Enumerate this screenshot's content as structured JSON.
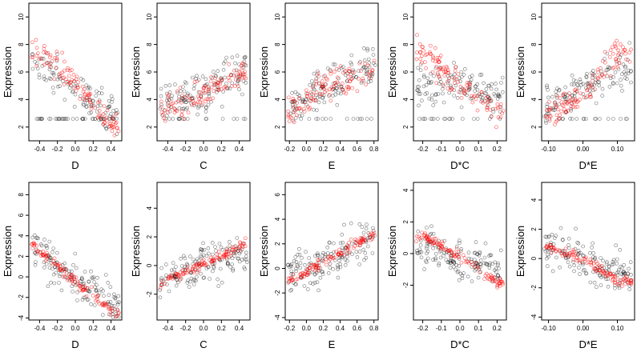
{
  "chart_data": [
    {
      "type": "scatter",
      "xlabel": "D",
      "ylabel": "Expression",
      "xlim": [
        -0.52,
        0.52
      ],
      "ylim": [
        1.0,
        11.0
      ],
      "xticks": [
        -0.4,
        -0.2,
        0.0,
        0.2,
        0.4
      ],
      "xtick_labels": [
        "-0.4",
        "-0.2",
        "0.0",
        "0.2",
        "0.4"
      ],
      "yticks": [
        2,
        4,
        6,
        8,
        10
      ],
      "ytick_labels": [
        "2",
        "4",
        "6",
        "8",
        "10"
      ],
      "trend": {
        "observed": [
          [
            -0.5,
            6.5
          ],
          [
            0.0,
            4.8
          ],
          [
            0.5,
            2.6
          ]
        ],
        "fitted": [
          [
            -0.5,
            8.0
          ],
          [
            0.0,
            5.2
          ],
          [
            0.5,
            1.6
          ]
        ]
      }
    },
    {
      "type": "scatter",
      "xlabel": "C",
      "ylabel": "Expression",
      "xlim": [
        -0.52,
        0.52
      ],
      "ylim": [
        1.0,
        11.0
      ],
      "xticks": [
        -0.4,
        -0.2,
        0.0,
        0.2,
        0.4
      ],
      "xtick_labels": [
        "-0.4",
        "-0.2",
        "0.0",
        "0.2",
        "0.4"
      ],
      "yticks": [
        2,
        4,
        6,
        8,
        10
      ],
      "ytick_labels": [
        "2",
        "4",
        "6",
        "8",
        "10"
      ],
      "trend": {
        "observed": [
          [
            -0.5,
            3.5
          ],
          [
            0.0,
            4.5
          ],
          [
            0.5,
            6.5
          ]
        ],
        "fitted": [
          [
            -0.5,
            3.0
          ],
          [
            0.0,
            4.2
          ],
          [
            0.5,
            6.2
          ]
        ]
      }
    },
    {
      "type": "scatter",
      "xlabel": "E",
      "ylabel": "Expression",
      "xlim": [
        -0.25,
        0.85
      ],
      "ylim": [
        1.0,
        11.0
      ],
      "xticks": [
        -0.2,
        0.0,
        0.2,
        0.4,
        0.6,
        0.8
      ],
      "xtick_labels": [
        "-0.2",
        "0.0",
        "0.2",
        "0.4",
        "0.6",
        "0.8"
      ],
      "yticks": [
        2,
        4,
        6,
        8,
        10
      ],
      "ytick_labels": [
        "2",
        "4",
        "6",
        "8",
        "10"
      ],
      "trend": {
        "observed": [
          [
            -0.2,
            3.5
          ],
          [
            0.2,
            4.8
          ],
          [
            0.8,
            6.5
          ]
        ],
        "fitted": [
          [
            -0.2,
            3.2
          ],
          [
            0.2,
            5.0
          ],
          [
            0.8,
            6.0
          ]
        ]
      }
    },
    {
      "type": "scatter",
      "xlabel": "D*C",
      "ylabel": "Expression",
      "xlim": [
        -0.25,
        0.25
      ],
      "ylim": [
        1.0,
        11.0
      ],
      "xticks": [
        -0.2,
        -0.1,
        0.0,
        0.1,
        0.2
      ],
      "xtick_labels": [
        "-0.2",
        "-0.1",
        "0.0",
        "0.1",
        "0.2"
      ],
      "yticks": [
        2,
        4,
        6,
        8,
        10
      ],
      "ytick_labels": [
        "2",
        "4",
        "6",
        "8",
        "10"
      ],
      "trend": {
        "observed": [
          [
            -0.2,
            5.0
          ],
          [
            0.0,
            5.0
          ],
          [
            0.2,
            4.5
          ]
        ],
        "fitted": [
          [
            -0.2,
            7.5
          ],
          [
            0.0,
            5.0
          ],
          [
            0.2,
            3.0
          ]
        ]
      }
    },
    {
      "type": "scatter",
      "xlabel": "D*E",
      "ylabel": "Expression",
      "xlim": [
        -0.12,
        0.15
      ],
      "ylim": [
        1.0,
        11.0
      ],
      "xticks": [
        -0.1,
        0.0,
        0.1
      ],
      "xtick_labels": [
        "-0.10",
        "0.00",
        "0.10"
      ],
      "yticks": [
        2,
        4,
        6,
        8,
        10
      ],
      "ytick_labels": [
        "2",
        "4",
        "6",
        "8",
        "10"
      ],
      "trend": {
        "observed": [
          [
            -0.1,
            3.5
          ],
          [
            0.0,
            5.0
          ],
          [
            0.1,
            6.0
          ]
        ],
        "fitted": [
          [
            -0.1,
            2.8
          ],
          [
            0.0,
            4.5
          ],
          [
            0.1,
            7.5
          ]
        ]
      }
    },
    {
      "type": "scatter",
      "xlabel": "D",
      "ylabel": "Expression",
      "xlim": [
        -0.52,
        0.52
      ],
      "ylim": [
        -4.2,
        9.2
      ],
      "xticks": [
        -0.4,
        -0.2,
        0.0,
        0.2,
        0.4
      ],
      "xtick_labels": [
        "-0.4",
        "-0.2",
        "0.0",
        "0.2",
        "0.4"
      ],
      "yticks": [
        -4,
        -2,
        0,
        2,
        4,
        6,
        8
      ],
      "ytick_labels": [
        "-4",
        "-2",
        "0",
        "2",
        "4",
        "6",
        "8"
      ],
      "trend": {
        "observed": [
          [
            -0.5,
            3.0
          ],
          [
            0.0,
            -0.5
          ],
          [
            0.5,
            -3.0
          ]
        ],
        "fitted": [
          [
            -0.5,
            3.3
          ],
          [
            0.0,
            -0.5
          ],
          [
            0.5,
            -3.8
          ]
        ]
      }
    },
    {
      "type": "scatter",
      "xlabel": "C",
      "ylabel": "Expression",
      "xlim": [
        -0.52,
        0.52
      ],
      "ylim": [
        -3.8,
        5.8
      ],
      "xticks": [
        -0.4,
        -0.2,
        0.0,
        0.2,
        0.4
      ],
      "xtick_labels": [
        "-0.4",
        "-0.2",
        "0.0",
        "0.2",
        "0.4"
      ],
      "yticks": [
        -2,
        0,
        2,
        4
      ],
      "ytick_labels": [
        "-2",
        "0",
        "2",
        "4"
      ],
      "trend": {
        "observed": [
          [
            -0.5,
            -1.0
          ],
          [
            0.0,
            0.0
          ],
          [
            0.5,
            1.0
          ]
        ],
        "fitted": [
          [
            -0.5,
            -1.3
          ],
          [
            0.0,
            0.1
          ],
          [
            0.5,
            1.6
          ]
        ]
      }
    },
    {
      "type": "scatter",
      "xlabel": "E",
      "ylabel": "Expression",
      "xlim": [
        -0.25,
        0.85
      ],
      "ylim": [
        -4.2,
        7.0
      ],
      "xticks": [
        -0.2,
        0.0,
        0.2,
        0.4,
        0.6,
        0.8
      ],
      "xtick_labels": [
        "-0.2",
        "0.0",
        "0.2",
        "0.4",
        "0.6",
        "0.8"
      ],
      "yticks": [
        -4,
        -2,
        0,
        2,
        4,
        6
      ],
      "ytick_labels": [
        "-4",
        "-2",
        "0",
        "2",
        "4",
        "6"
      ],
      "trend": {
        "observed": [
          [
            -0.2,
            -0.5
          ],
          [
            0.2,
            0.5
          ],
          [
            0.8,
            2.5
          ]
        ],
        "fitted": [
          [
            -0.2,
            -1.0
          ],
          [
            0.2,
            0.5
          ],
          [
            0.8,
            2.8
          ]
        ]
      }
    },
    {
      "type": "scatter",
      "xlabel": "D*C",
      "ylabel": "Expression",
      "xlim": [
        -0.25,
        0.25
      ],
      "ylim": [
        -4.2,
        4.5
      ],
      "xticks": [
        -0.2,
        -0.1,
        0.0,
        0.1,
        0.2
      ],
      "xtick_labels": [
        "-0.2",
        "-0.1",
        "0.0",
        "0.1",
        "0.2"
      ],
      "yticks": [
        -2,
        0,
        2,
        4
      ],
      "ytick_labels": [
        "-2",
        "0",
        "2",
        "4"
      ],
      "trend": {
        "observed": [
          [
            -0.2,
            0.5
          ],
          [
            0.0,
            -0.3
          ],
          [
            0.2,
            -1.0
          ]
        ],
        "fitted": [
          [
            -0.2,
            1.1
          ],
          [
            0.0,
            -0.2
          ],
          [
            0.2,
            -1.8
          ]
        ]
      }
    },
    {
      "type": "scatter",
      "xlabel": "D*E",
      "ylabel": "Expression",
      "xlim": [
        -0.12,
        0.15
      ],
      "ylim": [
        -4.2,
        5.2
      ],
      "xticks": [
        -0.1,
        0.0,
        0.1
      ],
      "xtick_labels": [
        "-0.10",
        "0.00",
        "0.10"
      ],
      "yticks": [
        -4,
        -2,
        0,
        2,
        4
      ],
      "ytick_labels": [
        "-4",
        "-2",
        "0",
        "2",
        "4"
      ],
      "trend": {
        "observed": [
          [
            -0.1,
            0.7
          ],
          [
            0.0,
            -0.2
          ],
          [
            0.1,
            -1.0
          ]
        ],
        "fitted": [
          [
            -0.1,
            0.8
          ],
          [
            0.0,
            0.0
          ],
          [
            0.1,
            -1.5
          ]
        ]
      }
    }
  ],
  "colors": {
    "observed": "#000000",
    "fitted": "#ff0000",
    "frame": "#000000"
  }
}
